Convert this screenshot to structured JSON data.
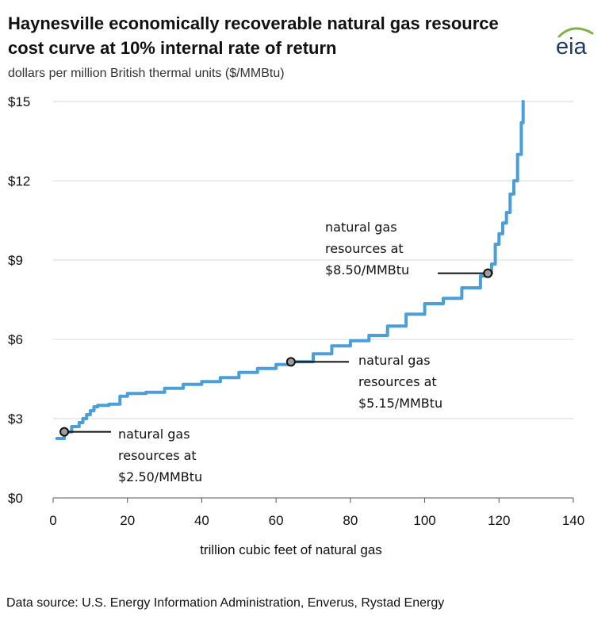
{
  "header": {
    "title": "Haynesville economically recoverable natural gas resource cost curve at 10% internal rate of return",
    "subtitle": "dollars per million British thermal units ($/MMBtu)",
    "logo_text": "eia"
  },
  "footer": {
    "source": "Data source: U.S. Energy Information Administration, Enverus, Rystad Energy"
  },
  "colors": {
    "line": "#4a9fd9",
    "grid": "#d9d9d9",
    "logo_arc": "#7cb342",
    "logo_text": "#1f3b63"
  },
  "chart_data": {
    "type": "line",
    "title": "Haynesville economically recoverable natural gas resource cost curve at 10% internal rate of return",
    "xlabel": "trillion cubic feet of natural gas",
    "ylabel": "dollars per million British thermal units ($/MMBtu)",
    "xlim": [
      0,
      140
    ],
    "ylim": [
      0,
      15
    ],
    "grid": true,
    "x_ticks": [
      0,
      20,
      40,
      60,
      80,
      100,
      120,
      140
    ],
    "x_tick_labels": [
      "0",
      "20",
      "40",
      "60",
      "80",
      "100",
      "120",
      "140"
    ],
    "y_ticks": [
      0,
      3,
      6,
      9,
      12,
      15
    ],
    "y_tick_labels": [
      "$0",
      "$3",
      "$6",
      "$9",
      "$12",
      "$15"
    ],
    "series": [
      {
        "x": [
          1,
          3,
          5,
          7,
          8,
          9,
          10,
          11,
          12,
          15,
          18,
          20,
          25,
          30,
          35,
          40,
          45,
          50,
          55,
          60,
          64,
          70,
          75,
          80,
          85,
          90,
          95,
          100,
          105,
          110,
          115,
          117,
          118,
          119,
          120,
          121,
          122,
          123,
          124,
          125,
          126,
          126.5
        ],
        "y": [
          2.25,
          2.5,
          2.7,
          2.85,
          3.0,
          3.15,
          3.3,
          3.45,
          3.5,
          3.55,
          3.85,
          3.95,
          4.0,
          4.15,
          4.3,
          4.4,
          4.55,
          4.75,
          4.9,
          5.05,
          5.15,
          5.45,
          5.75,
          5.95,
          6.15,
          6.5,
          6.95,
          7.35,
          7.55,
          7.95,
          8.4,
          8.5,
          8.85,
          9.6,
          10.0,
          10.4,
          10.8,
          11.5,
          12.0,
          13.0,
          14.2,
          15.0
        ]
      }
    ],
    "annotations": [
      {
        "x": 3,
        "y": 2.5,
        "lines": [
          "natural gas",
          "resources at",
          "$2.50/MMBtu"
        ]
      },
      {
        "x": 64,
        "y": 5.15,
        "lines": [
          "natural gas",
          "resources at",
          "$5.15/MMBtu"
        ]
      },
      {
        "x": 117,
        "y": 8.5,
        "lines": [
          "natural gas",
          "resources at",
          "$8.50/MMBtu"
        ]
      }
    ]
  }
}
